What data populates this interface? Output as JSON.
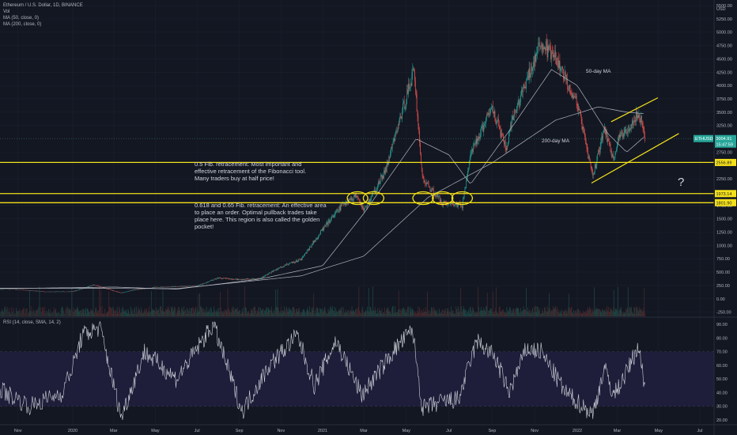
{
  "chart_data": {
    "type": "candlestick",
    "symbol": "ETHUSD",
    "legend": {
      "title": "Ethereum / U.S. Dollar, 1D, BINANCE",
      "vol": "Vol",
      "ma50": "MA (50, close, 0)",
      "ma200": "MA (200, close, 0)",
      "rsi": "RSI (14, close, SMA, 14, 2)"
    },
    "currency": "USD",
    "price_axis": {
      "ticks": [
        "5500.00",
        "5250.00",
        "5000.00",
        "4750.00",
        "4500.00",
        "4250.00",
        "4000.00",
        "3750.00",
        "3500.00",
        "3250.00",
        "2750.00",
        "2250.00",
        "1750.00",
        "1500.00",
        "1250.00",
        "1000.00",
        "750.00",
        "500.00",
        "250.00",
        "0.00",
        "-250.00"
      ],
      "ylim": [
        -330,
        5530
      ]
    },
    "rsi_axis": {
      "ticks": [
        "90.00",
        "80.00",
        "70.00",
        "60.00",
        "50.00",
        "40.00",
        "30.00",
        "20.00"
      ],
      "ylim": [
        17,
        93
      ],
      "band": [
        30,
        70
      ]
    },
    "x_axis": {
      "ticks": [
        "Nov",
        "2020",
        "Mar",
        "May",
        "Jul",
        "Sep",
        "Nov",
        "2021",
        "Mar",
        "May",
        "Jul",
        "Sep",
        "Nov",
        "2022",
        "Mar",
        "May",
        "Jul"
      ]
    },
    "close_series": [
      {
        "date": "2019-10-01",
        "close": 180
      },
      {
        "date": "2019-11-01",
        "close": 175
      },
      {
        "date": "2019-12-01",
        "close": 130
      },
      {
        "date": "2020-01-01",
        "close": 135
      },
      {
        "date": "2020-02-01",
        "close": 260
      },
      {
        "date": "2020-03-12",
        "close": 110
      },
      {
        "date": "2020-04-01",
        "close": 170
      },
      {
        "date": "2020-05-01",
        "close": 215
      },
      {
        "date": "2020-06-01",
        "close": 230
      },
      {
        "date": "2020-07-01",
        "close": 240
      },
      {
        "date": "2020-08-01",
        "close": 390
      },
      {
        "date": "2020-09-01",
        "close": 360
      },
      {
        "date": "2020-10-01",
        "close": 380
      },
      {
        "date": "2020-11-01",
        "close": 600
      },
      {
        "date": "2020-12-01",
        "close": 740
      },
      {
        "date": "2021-01-01",
        "close": 1300
      },
      {
        "date": "2021-02-01",
        "close": 1800
      },
      {
        "date": "2021-02-20",
        "close": 1950
      },
      {
        "date": "2021-03-01",
        "close": 1650
      },
      {
        "date": "2021-04-01",
        "close": 2400
      },
      {
        "date": "2021-05-12",
        "close": 4300
      },
      {
        "date": "2021-05-24",
        "close": 2250
      },
      {
        "date": "2021-06-22",
        "close": 1800
      },
      {
        "date": "2021-07-20",
        "close": 1750
      },
      {
        "date": "2021-08-01",
        "close": 2700
      },
      {
        "date": "2021-09-01",
        "close": 3600
      },
      {
        "date": "2021-09-21",
        "close": 2800
      },
      {
        "date": "2021-10-01",
        "close": 3400
      },
      {
        "date": "2021-11-10",
        "close": 4800
      },
      {
        "date": "2021-12-01",
        "close": 4500
      },
      {
        "date": "2021-12-31",
        "close": 3700
      },
      {
        "date": "2022-01-24",
        "close": 2300
      },
      {
        "date": "2022-02-10",
        "close": 3200
      },
      {
        "date": "2022-02-24",
        "close": 2600
      },
      {
        "date": "2022-03-01",
        "close": 2950
      },
      {
        "date": "2022-04-01",
        "close": 3470
      },
      {
        "date": "2022-04-08",
        "close": 3250
      },
      {
        "date": "2022-04-11",
        "close": 3005
      }
    ],
    "moving_averages": {
      "ma50": [
        {
          "date": "2019-10-01",
          "value": 190
        },
        {
          "date": "2020-03-01",
          "value": 220
        },
        {
          "date": "2020-06-01",
          "value": 180
        },
        {
          "date": "2020-10-01",
          "value": 370
        },
        {
          "date": "2021-01-01",
          "value": 620
        },
        {
          "date": "2021-03-01",
          "value": 1600
        },
        {
          "date": "2021-05-15",
          "value": 3000
        },
        {
          "date": "2021-07-01",
          "value": 2700
        },
        {
          "date": "2021-08-01",
          "value": 2150
        },
        {
          "date": "2021-10-01",
          "value": 3250
        },
        {
          "date": "2021-11-25",
          "value": 4300
        },
        {
          "date": "2022-01-01",
          "value": 4000
        },
        {
          "date": "2022-02-15",
          "value": 3100
        },
        {
          "date": "2022-03-15",
          "value": 2750
        },
        {
          "date": "2022-04-11",
          "value": 3050
        }
      ],
      "ma200": [
        {
          "date": "2019-10-01",
          "value": 200
        },
        {
          "date": "2020-06-01",
          "value": 190
        },
        {
          "date": "2020-12-01",
          "value": 430
        },
        {
          "date": "2021-03-01",
          "value": 800
        },
        {
          "date": "2021-06-01",
          "value": 1900
        },
        {
          "date": "2021-09-01",
          "value": 2550
        },
        {
          "date": "2021-12-01",
          "value": 3350
        },
        {
          "date": "2022-02-01",
          "value": 3600
        },
        {
          "date": "2022-03-15",
          "value": 3500
        },
        {
          "date": "2022-04-11",
          "value": 3470
        }
      ]
    },
    "rsi_series": [
      {
        "date": "2019-10-01",
        "value": 46
      },
      {
        "date": "2019-11-15",
        "value": 30
      },
      {
        "date": "2019-12-20",
        "value": 40
      },
      {
        "date": "2020-01-15",
        "value": 82
      },
      {
        "date": "2020-02-10",
        "value": 88
      },
      {
        "date": "2020-03-12",
        "value": 22
      },
      {
        "date": "2020-04-15",
        "value": 70
      },
      {
        "date": "2020-06-01",
        "value": 50
      },
      {
        "date": "2020-07-25",
        "value": 90
      },
      {
        "date": "2020-09-05",
        "value": 26
      },
      {
        "date": "2020-10-15",
        "value": 60
      },
      {
        "date": "2020-11-25",
        "value": 82
      },
      {
        "date": "2020-12-20",
        "value": 45
      },
      {
        "date": "2021-01-20",
        "value": 78
      },
      {
        "date": "2021-02-26",
        "value": 38
      },
      {
        "date": "2021-04-15",
        "value": 72
      },
      {
        "date": "2021-05-10",
        "value": 86
      },
      {
        "date": "2021-05-24",
        "value": 28
      },
      {
        "date": "2021-06-20",
        "value": 33
      },
      {
        "date": "2021-07-15",
        "value": 35
      },
      {
        "date": "2021-08-10",
        "value": 78
      },
      {
        "date": "2021-09-05",
        "value": 66
      },
      {
        "date": "2021-09-25",
        "value": 40
      },
      {
        "date": "2021-10-20",
        "value": 72
      },
      {
        "date": "2021-11-10",
        "value": 70
      },
      {
        "date": "2021-12-15",
        "value": 40
      },
      {
        "date": "2022-01-24",
        "value": 24
      },
      {
        "date": "2022-02-10",
        "value": 58
      },
      {
        "date": "2022-02-24",
        "value": 38
      },
      {
        "date": "2022-03-15",
        "value": 55
      },
      {
        "date": "2022-04-01",
        "value": 74
      },
      {
        "date": "2022-04-11",
        "value": 45
      }
    ],
    "horizontal_levels": [
      {
        "value": 2556.89,
        "label": "2556.89"
      },
      {
        "value": 1973.14,
        "label": "1973.14"
      },
      {
        "value": 1801.9,
        "label": "1801.90"
      }
    ],
    "current_price": {
      "value": 3004.91,
      "label": "3004.91",
      "countdown": "15:47:59",
      "ticker": "ETHUSD"
    },
    "channel": {
      "upper": [
        {
          "date": "2022-02-20",
          "value": 3320
        },
        {
          "date": "2022-04-30",
          "value": 3770
        }
      ],
      "lower": [
        {
          "date": "2022-01-22",
          "value": 2170
        },
        {
          "date": "2022-05-31",
          "value": 3100
        }
      ]
    },
    "highlight_ellipses": [
      "2021-02-20",
      "2021-03-15",
      "2021-05-25",
      "2021-06-22",
      "2021-07-20"
    ],
    "annotations": {
      "ma50_label": "50-day MA",
      "ma200_label": "200-day MA",
      "fib_half": "0.5 Fib. retracement: Most important and effective retracement of the Fibonacci tool. Many traders buy at half price!",
      "fib_golden": "0.618 and 0.65 Fib. retracement: An effective area to place an order. Optimal pullback trades take place here. This region is also called the golden pocket!",
      "question": "?"
    },
    "colors": {
      "background": "#131722",
      "up": "#26a69a",
      "down": "#ef5350",
      "level": "#f5e11a",
      "ma": "#b2b5be",
      "rsi_band": "#1e1e3a",
      "price_badge": "#26a69a"
    }
  }
}
